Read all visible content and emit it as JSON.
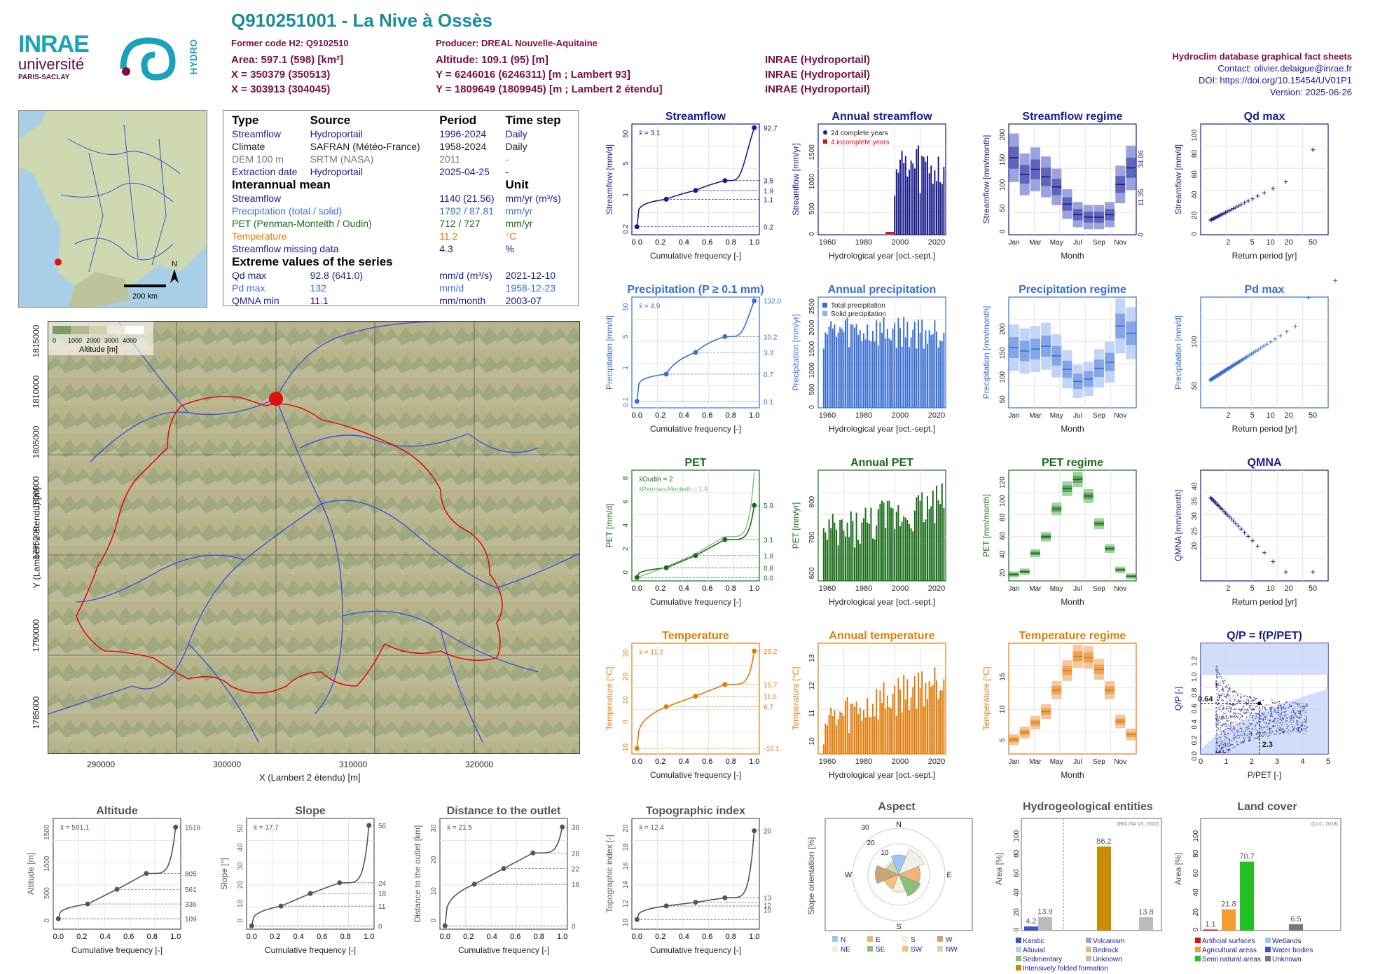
{
  "header": {
    "title": "Q910251001 - La Nive à Ossès",
    "former_code": "Former code H2: Q9102510",
    "producer": "Producer: DREAL Nouvelle-Aquitaine",
    "area": "Area: 597.1 (598) [km²]",
    "altitude": "Altitude: 109.1 (95) [m]",
    "x93": "X = 350379 (350513)",
    "y93": "Y = 6246016 (6246311) [m ; Lambert 93]",
    "x2": "X = 303913 (304045)",
    "y2": "Y = 1809649 (1809945) [m ; Lambert 2 étendu]",
    "src1": "INRAE (Hydroportail)",
    "src2": "INRAE (Hydroportail)",
    "src3": "INRAE (Hydroportail)",
    "db": "Hydroclim database graphical fact sheets",
    "contact": "Contact: olivier.delaigue@inrae.fr",
    "doi": "DOI: https://doi.org/10.15454/UV01P1",
    "version": "Version: 2025-06-26",
    "logo_inrae": "INRAE",
    "logo_univ": "université",
    "logo_ps": "PARIS-SACLAY",
    "logo_hydro": "HYDRO"
  },
  "info": {
    "h1": [
      "Type",
      "Source",
      "Period",
      "Time step"
    ],
    "rows1": [
      [
        "Streamflow",
        "Hydroportail",
        "1996-2024",
        "Daily"
      ],
      [
        "Climate",
        "SAFRAN (Météo-France)",
        "1958-2024",
        "Daily"
      ],
      [
        "DEM 100 m",
        "SRTM (NASA)",
        "2011",
        "-"
      ],
      [
        "Extraction date",
        "Hydroportail",
        "2025-04-25",
        "-"
      ]
    ],
    "h2": "Interannual mean",
    "h2u": "Unit",
    "rows2": [
      [
        "Streamflow",
        "1140 (21.56)",
        "mm/yr (m³/s)"
      ],
      [
        "Precipitation (total / solid)",
        "1792 / 87.81",
        "mm/yr"
      ],
      [
        "PET (Penman-Monteith / Oudin)",
        "712 / 727",
        "mm/yr"
      ],
      [
        "Temperature",
        "11.2",
        "°C"
      ],
      [
        "Streamflow missing data",
        "4.3",
        "%"
      ]
    ],
    "h3": "Extreme values of the series",
    "rows3": [
      [
        "Qd max",
        "92.8 (641.0)",
        "mm/d (m³/s)",
        "2021-12-10"
      ],
      [
        "Pd max",
        "132",
        "mm/d",
        "1958-12-23"
      ],
      [
        "QMNA min",
        "11.1",
        "mm/month",
        "2003-07"
      ]
    ]
  },
  "maps": {
    "scale": "200 km",
    "north": "N",
    "legend_title": "Altitude [m]",
    "legend_ticks": [
      "0",
      "1000",
      "2000",
      "3000",
      "4000"
    ],
    "xlabel": "X (Lambert 2 étendu) [m]",
    "ylabel": "Y (Lambert 2 étendu) [m]",
    "xticks": [
      "290000",
      "300000",
      "310000",
      "320000"
    ],
    "yticks": [
      "1815000",
      "1810000",
      "1805000",
      "1800000",
      "1795000",
      "1790000",
      "1785000"
    ]
  },
  "colors": {
    "streamflow": "#1b1b8a",
    "precip": "#3a6fd0",
    "pet": "#1a6b1a",
    "temp": "#e07b0a",
    "gray": "#555555",
    "red": "#e01010"
  },
  "chart_data": [
    {
      "id": "streamflow",
      "type": "line",
      "title": "Streamflow",
      "xlabel": "Cumulative frequency [-]",
      "ylabel": "Streamflow [mm/d]",
      "mean": "x̄ = 3.1",
      "scale": "log",
      "ticks": [
        "0.2",
        "1",
        "5",
        "50"
      ],
      "right": [
        "92.7",
        "3.5",
        "1.9",
        "1.1",
        "0.2"
      ],
      "x": [
        0,
        0.25,
        0.5,
        0.75,
        1
      ],
      "y": [
        0.2,
        1.1,
        1.9,
        3.5,
        92.7
      ]
    },
    {
      "id": "precip",
      "type": "line",
      "title": "Precipitation (P ≥ 0.1 mm)",
      "xlabel": "Cumulative frequency [-]",
      "ylabel": "Precipitation [mm/d]",
      "mean": "x̄ = 4.9",
      "scale": "log",
      "ticks": [
        "0.1",
        "1",
        "5",
        "50"
      ],
      "right": [
        "132.0",
        "10.2",
        "3.3",
        "0.7",
        "0.1"
      ],
      "x": [
        0,
        0.25,
        0.5,
        0.75,
        1
      ],
      "y": [
        0.1,
        0.7,
        3.3,
        10.2,
        132
      ]
    },
    {
      "id": "pet",
      "type": "line",
      "title": "PET",
      "xlabel": "Cumulative frequency [-]",
      "ylabel": "PET [mm/d]",
      "mean": "x̄Oudin = 2",
      "mean2": "x̄Penman-Monteith = 1.9",
      "scale": "lin",
      "ticks": [
        "0",
        "2",
        "4",
        "6",
        "8"
      ],
      "right": [
        "5.9",
        "3.1",
        "1.8",
        "0.8",
        "0.0"
      ],
      "x": [
        0,
        0.25,
        0.5,
        0.75,
        1
      ],
      "y": [
        0,
        0.8,
        1.8,
        3.1,
        5.9
      ]
    },
    {
      "id": "temp",
      "type": "line",
      "title": "Temperature",
      "xlabel": "Cumulative frequency [-]",
      "ylabel": "Temperature [°C]",
      "mean": "x̄ = 11.2",
      "scale": "lin",
      "ticks": [
        "-10",
        "0",
        "10",
        "20",
        "30"
      ],
      "right": [
        "29.2",
        "15.7",
        "11.0",
        "6.7",
        "-10.1"
      ],
      "x": [
        0,
        0.25,
        0.5,
        0.75,
        1
      ],
      "y": [
        -10.1,
        6.7,
        11,
        15.7,
        29.2
      ]
    },
    {
      "id": "annual_q",
      "type": "bar",
      "title": "Annual streamflow",
      "xlabel": "Hydrological year [oct.-sept.]",
      "ylabel": "Streamflow [mm/yr]",
      "legend": [
        "24 complete years",
        "4 incomplete years"
      ],
      "ylim": [
        0,
        1900
      ],
      "yticks": [
        "0",
        "500",
        "1000",
        "1500"
      ],
      "xticks": [
        "1960",
        "1980",
        "2000",
        "2020"
      ]
    },
    {
      "id": "annual_p",
      "type": "bar",
      "title": "Annual precipitation",
      "xlabel": "Hydrological year [oct.-sept.]",
      "ylabel": "Precipitation [mm/yr]",
      "legend": [
        "Total precipitation",
        "Solid precipitation"
      ],
      "ylim": [
        0,
        2600
      ],
      "yticks": [
        "0",
        "500",
        "1000",
        "1500",
        "2000",
        "2500"
      ],
      "xticks": [
        "1960",
        "1980",
        "2000",
        "2020"
      ]
    },
    {
      "id": "annual_pet",
      "type": "bar",
      "title": "Annual PET",
      "xlabel": "Hydrological year [oct.-sept.]",
      "ylabel": "PET [mm/yr]",
      "ylim": [
        570,
        880
      ],
      "yticks": [
        "600",
        "700",
        "800"
      ],
      "xticks": [
        "1960",
        "1980",
        "2000",
        "2020"
      ]
    },
    {
      "id": "annual_t",
      "type": "bar",
      "title": "Annual temperature",
      "xlabel": "Hydrological year [oct.-sept.]",
      "ylabel": "Temperature [°C]",
      "ylim": [
        9.5,
        13.5
      ],
      "yticks": [
        "10",
        "11",
        "12",
        "13"
      ],
      "xticks": [
        "1960",
        "1980",
        "2000",
        "2020"
      ]
    },
    {
      "id": "regime_q",
      "type": "box",
      "title": "Streamflow regime",
      "xlabel": "Month",
      "ylabel": "Streamflow [mm/month]",
      "ylabel2": "Streamflow [m³/s]",
      "yticks": [
        "0",
        "50",
        "100",
        "150",
        "200"
      ],
      "right": [
        "34.06",
        "11.35",
        "0"
      ],
      "months": [
        "Jan",
        "Mar",
        "May",
        "Jul",
        "Sep",
        "Nov"
      ],
      "median": [
        148,
        115,
        125,
        110,
        90,
        56,
        35,
        30,
        30,
        35,
        95,
        128
      ]
    },
    {
      "id": "regime_p",
      "type": "box",
      "title": "Precipitation regime",
      "xlabel": "Month",
      "ylabel": "Precipitation [mm/month]",
      "yticks": [
        "50",
        "100",
        "150",
        "200"
      ],
      "months": [
        "Jan",
        "Mar",
        "May",
        "Jul",
        "Sep",
        "Nov"
      ],
      "median": [
        155,
        148,
        152,
        158,
        138,
        110,
        85,
        90,
        112,
        125,
        200,
        185
      ]
    },
    {
      "id": "regime_pet",
      "type": "box",
      "title": "PET regime",
      "xlabel": "Month",
      "ylabel": "PET [mm/month]",
      "yticks": [
        "20",
        "40",
        "60",
        "80",
        "100",
        "120"
      ],
      "months": [
        "Jan",
        "Mar",
        "May",
        "Jul",
        "Sep",
        "Nov"
      ],
      "median": [
        17,
        20,
        40,
        58,
        88,
        110,
        120,
        102,
        72,
        45,
        22,
        15
      ]
    },
    {
      "id": "regime_t",
      "type": "box",
      "title": "Temperature regime",
      "xlabel": "Month",
      "ylabel": "Temperature [°C]",
      "yticks": [
        "5",
        "10",
        "15"
      ],
      "months": [
        "Jan",
        "Mar",
        "May",
        "Jul",
        "Sep",
        "Nov"
      ],
      "median": [
        5.2,
        6.3,
        7.8,
        9.5,
        12.8,
        15.8,
        18,
        17.8,
        16,
        12.8,
        8,
        6
      ]
    },
    {
      "id": "qdmax",
      "type": "scatter",
      "title": "Qd max",
      "xlabel": "Return period [yr]",
      "ylabel": "Streamflow [mm/d]",
      "yticks": [
        "0",
        "20",
        "40",
        "60",
        "80",
        "100"
      ],
      "xticks": [
        "2",
        "5",
        "10",
        "20",
        "50"
      ]
    },
    {
      "id": "pdmax",
      "type": "scatter",
      "title": "Pd max",
      "xlabel": "Return period [yr]",
      "ylabel": "Precipitation [mm/d]",
      "yticks": [
        "50",
        "100"
      ],
      "xticks": [
        "2",
        "5",
        "10",
        "20",
        "50"
      ]
    },
    {
      "id": "qmna",
      "type": "scatter",
      "title": "QMNA",
      "xlabel": "Return period [yr]",
      "ylabel": "QMNA [mm/month]",
      "yticks": [
        "20",
        "25",
        "30",
        "35",
        "40"
      ],
      "xticks": [
        "2",
        "5",
        "10",
        "20",
        "50"
      ]
    },
    {
      "id": "qp",
      "type": "scatter",
      "title": "Q/P = f(P/PET)",
      "xlabel": "P/PET [-]",
      "ylabel": "Q/P [-]",
      "yticks": [
        "0.0",
        "0.2",
        "0.4",
        "0.6",
        "0.8",
        "1.0",
        "1.2"
      ],
      "xticks": [
        "0",
        "1",
        "2",
        "3",
        "4",
        "5"
      ],
      "point": [
        "0.64",
        "2.3"
      ]
    },
    {
      "id": "alt",
      "type": "line",
      "title": "Altitude",
      "xlabel": "Cumulative frequency [-]",
      "ylabel": "Altitude [m]",
      "mean": "x̄ = 591.1",
      "ticks": [
        "0",
        "500",
        "1000",
        "1500"
      ],
      "right": [
        "1518",
        "805",
        "561",
        "336",
        "109"
      ],
      "x": [
        0,
        0.25,
        0.5,
        0.75,
        1
      ],
      "y": [
        109,
        336,
        561,
        805,
        1518
      ],
      "ylim": [
        0,
        1600
      ]
    },
    {
      "id": "slope",
      "type": "line",
      "title": "Slope",
      "xlabel": "Cumulative frequency [-]",
      "ylabel": "Slope [°]",
      "mean": "x̄ = 17.7",
      "ticks": [
        "0",
        "10",
        "20",
        "30",
        "40",
        "50"
      ],
      "right": [
        "56",
        "24",
        "18",
        "11",
        "0"
      ],
      "x": [
        0,
        0.25,
        0.5,
        0.75,
        1
      ],
      "y": [
        0,
        11,
        18,
        24,
        56
      ],
      "ylim": [
        0,
        58
      ]
    },
    {
      "id": "dist",
      "type": "line",
      "title": "Distance to the outlet",
      "xlabel": "Cumulative frequency [-]",
      "ylabel": "Distance to the outlet [km]",
      "mean": "x̄ = 21.5",
      "ticks": [
        "0",
        "10",
        "20",
        "30"
      ],
      "right": [
        "38",
        "28",
        "22",
        "16",
        "0"
      ],
      "x": [
        0,
        0.25,
        0.5,
        0.75,
        1
      ],
      "y": [
        0,
        16,
        22,
        28,
        38
      ],
      "ylim": [
        0,
        40
      ]
    },
    {
      "id": "topo",
      "type": "line",
      "title": "Topographic index",
      "xlabel": "Cumulative frequency [-]",
      "ylabel": "Topographic index [-]",
      "mean": "x̄ = 12.4",
      "ticks": [
        "10",
        "12",
        "14",
        "16",
        "18",
        "20"
      ],
      "right": [
        "20",
        "13",
        "12",
        "10"
      ],
      "x": [
        0,
        0.25,
        0.5,
        0.75,
        1
      ],
      "y": [
        10.2,
        11.7,
        12.1,
        12.6,
        20
      ],
      "ylim": [
        9.5,
        21
      ]
    },
    {
      "id": "aspect",
      "type": "pie",
      "title": "Aspect",
      "ylabel": "Slope orientation [%]",
      "dirs": [
        "N",
        "E",
        "S",
        "W"
      ],
      "rings": [
        "10",
        "20",
        "30"
      ],
      "legend": [
        "N",
        "E",
        "S",
        "W",
        "NE",
        "SE",
        "SW",
        "NW"
      ]
    },
    {
      "id": "hydrogeo",
      "type": "bar",
      "title": "Hydrogeological entities",
      "ylabel": "Area [%]",
      "source": "(BDLISA V3, 2022)",
      "yticks": [
        "0",
        "20",
        "40",
        "60",
        "80",
        "100"
      ],
      "labels": [
        "4.2",
        "13.9",
        "86.2",
        "13.8"
      ],
      "values": [
        4.2,
        13.9,
        86.2,
        13.8
      ],
      "legend": [
        "Karstic",
        "Volcanism",
        "Alluvial",
        "Bedrock",
        "Sedimentary",
        "Unknown",
        "Intensively folded formation"
      ]
    },
    {
      "id": "landcover",
      "type": "bar",
      "title": "Land cover",
      "ylabel": "Area [%]",
      "source": "(CLC, 2018)",
      "yticks": [
        "0",
        "20",
        "40",
        "60",
        "80",
        "100"
      ],
      "labels": [
        "1.1",
        "21.8",
        "70.7",
        "6.5"
      ],
      "values": [
        1.1,
        21.8,
        70.7,
        6.5
      ],
      "legend": [
        "Artificial surfaces",
        "Wetlands",
        "Agricultural areas",
        "Water bodies",
        "Semi natural areas",
        "Unknown"
      ]
    }
  ]
}
